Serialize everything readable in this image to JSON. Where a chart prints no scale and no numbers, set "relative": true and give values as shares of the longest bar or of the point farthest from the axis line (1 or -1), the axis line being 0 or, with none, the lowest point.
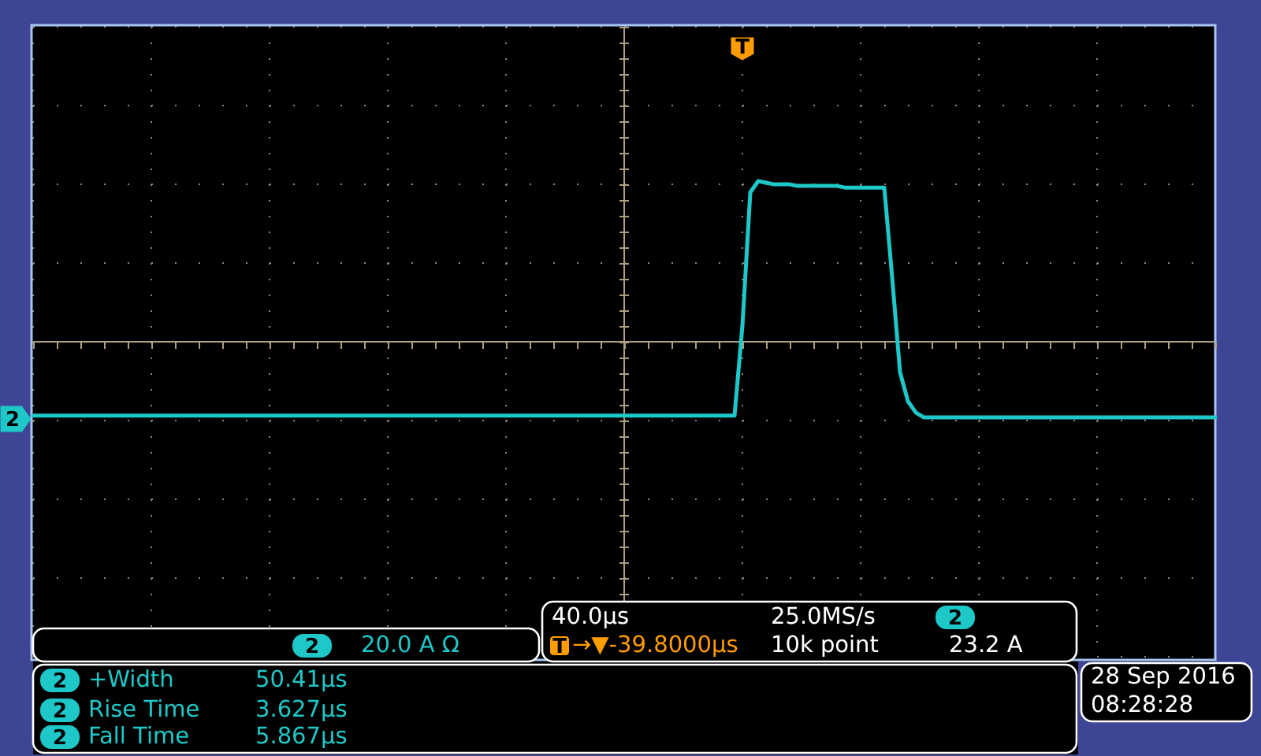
{
  "chart_data": {
    "type": "line",
    "relative": true,
    "grid": true,
    "categories": [
      null,
      null,
      null,
      null,
      null,
      null,
      null,
      null,
      null,
      null,
      null,
      null,
      null,
      null,
      null,
      null,
      null,
      null,
      null,
      null,
      null,
      null,
      null,
      null,
      null,
      null,
      null,
      null,
      null,
      null,
      null,
      null,
      null,
      null,
      null,
      null,
      null,
      null,
      null,
      null,
      null,
      null,
      null,
      null,
      null,
      null,
      null,
      null,
      null,
      null,
      null,
      null,
      null,
      null,
      null,
      null,
      null,
      null,
      null,
      null,
      null,
      null,
      null,
      null,
      null,
      null,
      null,
      null,
      null,
      null,
      null,
      null,
      null,
      null,
      null,
      null,
      null,
      null,
      null,
      null,
      null,
      null,
      null,
      null,
      null,
      null,
      null,
      null,
      null,
      null,
      null,
      null,
      null,
      null,
      null,
      null,
      null,
      null,
      null,
      null,
      null,
      null,
      null,
      null,
      null,
      null,
      null,
      null,
      null,
      null,
      null,
      null,
      null,
      null,
      null,
      null,
      null,
      null,
      null,
      null,
      null,
      null,
      null,
      null,
      null,
      null,
      null,
      null,
      null,
      null,
      null,
      null,
      null,
      null,
      null,
      null,
      null,
      null,
      null,
      null,
      null,
      null,
      null,
      null,
      null,
      null,
      null,
      null,
      null,
      null,
      null
    ],
    "series": [
      {
        "color": "#1ec8c8",
        "values": [
          -0.46,
          -0.46,
          -0.46,
          -0.46,
          -0.46,
          -0.46,
          -0.46,
          -0.46,
          -0.46,
          -0.46,
          -0.46,
          -0.46,
          -0.46,
          -0.46,
          -0.46,
          -0.46,
          -0.46,
          -0.46,
          -0.46,
          -0.46,
          -0.46,
          -0.46,
          -0.46,
          -0.46,
          -0.46,
          -0.46,
          -0.46,
          -0.46,
          -0.46,
          -0.46,
          -0.46,
          -0.46,
          -0.46,
          -0.46,
          -0.46,
          -0.46,
          -0.46,
          -0.46,
          -0.46,
          -0.46,
          -0.46,
          -0.46,
          -0.46,
          -0.46,
          -0.46,
          -0.46,
          -0.46,
          -0.46,
          -0.46,
          -0.46,
          -0.46,
          -0.46,
          -0.46,
          -0.46,
          -0.46,
          -0.46,
          -0.46,
          -0.46,
          -0.46,
          -0.46,
          -0.46,
          -0.46,
          -0.46,
          -0.46,
          -0.46,
          -0.46,
          -0.46,
          -0.46,
          -0.46,
          -0.46,
          -0.46,
          -0.46,
          -0.46,
          -0.46,
          -0.46,
          -0.46,
          -0.46,
          -0.46,
          -0.46,
          -0.46,
          -0.46,
          -0.46,
          -0.46,
          -0.46,
          -0.46,
          -0.46,
          -0.46,
          -0.46,
          -0.46,
          -0.46,
          0.1,
          0.93,
          1,
          0.99,
          0.98,
          0.98,
          0.98,
          0.97,
          0.97,
          0.97,
          0.97,
          0.97,
          0.97,
          0.96,
          0.96,
          0.96,
          0.96,
          0.96,
          0.96,
          0.4,
          -0.19,
          -0.37,
          -0.44,
          -0.47,
          -0.47,
          -0.47,
          -0.47,
          -0.47,
          -0.47,
          -0.47,
          -0.47,
          -0.47,
          -0.47,
          -0.47,
          -0.47,
          -0.47,
          -0.47,
          -0.47,
          -0.47,
          -0.47,
          -0.47,
          -0.47,
          -0.47,
          -0.47,
          -0.47,
          -0.47,
          -0.47,
          -0.47,
          -0.47,
          -0.47,
          -0.47,
          -0.47,
          -0.47,
          -0.47,
          -0.47,
          -0.47,
          -0.47,
          -0.47,
          -0.47,
          -0.47,
          -0.47
        ]
      }
    ],
    "ref_lines": [
      {
        "axis": "y",
        "value": 0,
        "color": "#ad9f7f"
      }
    ],
    "annotations": [
      "2",
      "T",
      "2",
      "20.0 A Ω",
      "40.0µs",
      "25.0MS/s",
      "2",
      "T",
      "→▼-39.8000µs",
      "10k point",
      "23.2 A",
      "2",
      "+Width",
      "50.41µs",
      "2",
      "Rise Time",
      "3.627µs",
      "2",
      "Fall Time",
      "5.867µs",
      "28 Sep 2016",
      "08:28:28"
    ]
  }
}
